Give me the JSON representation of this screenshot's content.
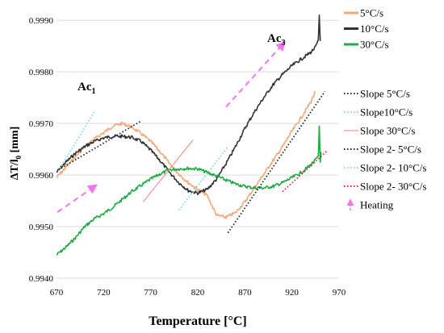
{
  "chart_data": {
    "type": "line",
    "title": "",
    "xlabel": "Temperature  [°C]",
    "ylabel_main": "ΔT/l",
    "ylabel_sub": "0",
    "ylabel_unit": " [mm]",
    "xlim": [
      670,
      970
    ],
    "ylim": [
      0.994,
      0.9993
    ],
    "xticks": [
      "670",
      "720",
      "770",
      "820",
      "870",
      "920",
      "970"
    ],
    "yticks": [
      "0.9940",
      "0.9950",
      "0.9960",
      "0.9970",
      "0.9980",
      "0.9990"
    ],
    "grid": "horizontal",
    "legend_position": "right",
    "annotations": {
      "ac1_main": "Ac",
      "ac1_sub": "1",
      "ac3_main": "Ac",
      "ac3_sub": "3"
    },
    "series": [
      {
        "name": "5°C/s",
        "color": "#f4a77a",
        "style": "solid",
        "points": [
          [
            670,
            0.99595
          ],
          [
            680,
            0.99615
          ],
          [
            690,
            0.99635
          ],
          [
            700,
            0.99655
          ],
          [
            710,
            0.9967
          ],
          [
            720,
            0.99682
          ],
          [
            730,
            0.99695
          ],
          [
            740,
            0.997
          ],
          [
            750,
            0.99693
          ],
          [
            760,
            0.9968
          ],
          [
            770,
            0.99665
          ],
          [
            780,
            0.99645
          ],
          [
            790,
            0.99622
          ],
          [
            800,
            0.99602
          ],
          [
            810,
            0.99585
          ],
          [
            820,
            0.99572
          ],
          [
            830,
            0.9956
          ],
          [
            840,
            0.99522
          ],
          [
            850,
            0.99518
          ],
          [
            860,
            0.99527
          ],
          [
            870,
            0.99548
          ],
          [
            880,
            0.99575
          ],
          [
            890,
            0.99602
          ],
          [
            900,
            0.99628
          ],
          [
            910,
            0.99655
          ],
          [
            920,
            0.99685
          ],
          [
            930,
            0.99712
          ],
          [
            940,
            0.99742
          ],
          [
            945,
            0.99762
          ]
        ]
      },
      {
        "name": "10°C/s",
        "color": "#333333",
        "style": "solid",
        "points": [
          [
            670,
            0.99605
          ],
          [
            680,
            0.99625
          ],
          [
            690,
            0.99642
          ],
          [
            700,
            0.99655
          ],
          [
            710,
            0.99665
          ],
          [
            720,
            0.99672
          ],
          [
            730,
            0.99675
          ],
          [
            740,
            0.99675
          ],
          [
            750,
            0.99673
          ],
          [
            760,
            0.99665
          ],
          [
            770,
            0.99648
          ],
          [
            780,
            0.99628
          ],
          [
            790,
            0.99605
          ],
          [
            800,
            0.99585
          ],
          [
            810,
            0.9957
          ],
          [
            820,
            0.99565
          ],
          [
            830,
            0.99572
          ],
          [
            840,
            0.99592
          ],
          [
            850,
            0.99622
          ],
          [
            860,
            0.99655
          ],
          [
            870,
            0.9969
          ],
          [
            880,
            0.99722
          ],
          [
            890,
            0.9975
          ],
          [
            900,
            0.99775
          ],
          [
            910,
            0.99795
          ],
          [
            920,
            0.99812
          ],
          [
            930,
            0.99825
          ],
          [
            940,
            0.99838
          ],
          [
            945,
            0.99848
          ],
          [
            948,
            0.9986
          ],
          [
            949,
            0.9991
          ],
          [
            950,
            0.9986
          ]
        ]
      },
      {
        "name": "30°C/s",
        "color": "#22aa44",
        "style": "solid",
        "points": [
          [
            670,
            0.99445
          ],
          [
            680,
            0.9946
          ],
          [
            690,
            0.99478
          ],
          [
            700,
            0.995
          ],
          [
            710,
            0.99515
          ],
          [
            720,
            0.99525
          ],
          [
            730,
            0.99538
          ],
          [
            740,
            0.99553
          ],
          [
            750,
            0.99568
          ],
          [
            760,
            0.9958
          ],
          [
            770,
            0.99592
          ],
          [
            780,
            0.99602
          ],
          [
            790,
            0.9961
          ],
          [
            800,
            0.99612
          ],
          [
            810,
            0.99613
          ],
          [
            820,
            0.99612
          ],
          [
            830,
            0.99605
          ],
          [
            840,
            0.99598
          ],
          [
            850,
            0.9959
          ],
          [
            860,
            0.99583
          ],
          [
            870,
            0.99578
          ],
          [
            880,
            0.99575
          ],
          [
            890,
            0.99575
          ],
          [
            900,
            0.99578
          ],
          [
            910,
            0.99585
          ],
          [
            920,
            0.99595
          ],
          [
            930,
            0.99605
          ],
          [
            940,
            0.9962
          ],
          [
            948,
            0.99635
          ],
          [
            949,
            0.99695
          ],
          [
            950,
            0.99625
          ],
          [
            951,
            0.99645
          ]
        ]
      },
      {
        "name": "Slope 5°C/s",
        "color": "#222222",
        "style": "dotted",
        "points": [
          [
            672,
            0.9961
          ],
          [
            760,
            0.99705
          ]
        ]
      },
      {
        "name": "Slope10°C/s",
        "color": "#7fd3e6",
        "style": "dotted",
        "points": [
          [
            672,
            0.99608
          ],
          [
            710,
            0.99722
          ]
        ]
      },
      {
        "name": "Slope 30°C/s",
        "color": "#f08080",
        "style": "solid-thin",
        "points": [
          [
            762,
            0.99548
          ],
          [
            815,
            0.99668
          ]
        ]
      },
      {
        "name": "Slope 2- 5°C/s",
        "color": "#222222",
        "style": "dotted",
        "points": [
          [
            852,
            0.99488
          ],
          [
            955,
            0.99762
          ]
        ]
      },
      {
        "name": "Slope 2-  10°C/s",
        "color": "#7fd3e6",
        "style": "dotted",
        "points": [
          [
            800,
            0.99532
          ],
          [
            852,
            0.99655
          ]
        ]
      },
      {
        "name": "Slope 2- 30°C/s",
        "color": "#dd2222",
        "style": "dotted",
        "points": [
          [
            910,
            0.99568
          ],
          [
            958,
            0.99648
          ]
        ]
      },
      {
        "name": "Heating",
        "color": "#ee77ee",
        "style": "dashed-arrow",
        "arrows": [
          [
            [
              671,
              0.99528
            ],
            [
              712,
              0.9958
            ]
          ],
          [
            [
              850,
              0.99732
            ],
            [
              912,
              0.99857
            ]
          ]
        ]
      }
    ]
  }
}
